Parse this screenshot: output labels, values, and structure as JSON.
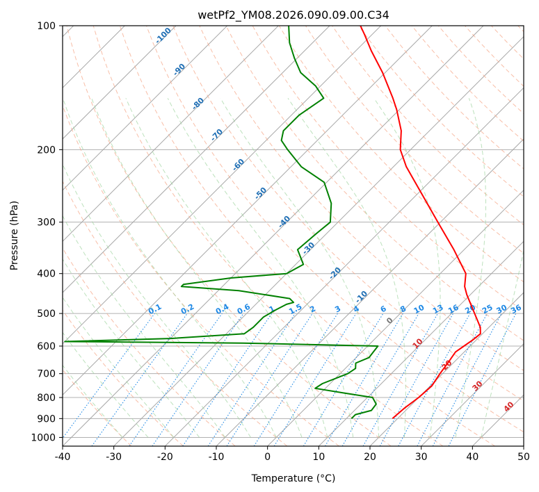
{
  "chart_data": {
    "type": "skew-t",
    "title": "wetPf2_YM08.2026.090.09.00.C34",
    "xlabel": "Temperature (°C)",
    "ylabel": "Pressure (hPa)",
    "xlim": [
      -40,
      50
    ],
    "ylim": [
      1050,
      100
    ],
    "x_ticks": [
      "-40",
      "-30",
      "-20",
      "-10",
      "0",
      "10",
      "20",
      "30",
      "40",
      "50"
    ],
    "y_ticks": [
      "100",
      "200",
      "300",
      "400",
      "500",
      "600",
      "700",
      "800",
      "900",
      "1000"
    ],
    "series": [
      {
        "name": "temperature",
        "color": "#ff0000",
        "points": [
          [
            900,
            19.0
          ],
          [
            850,
            19.3
          ],
          [
            800,
            20.0
          ],
          [
            750,
            20.3
          ],
          [
            700,
            19.5
          ],
          [
            650,
            18.8
          ],
          [
            620,
            18.3
          ],
          [
            600,
            18.8
          ],
          [
            580,
            19.3
          ],
          [
            560,
            19.6
          ],
          [
            540,
            18.3
          ],
          [
            500,
            14.5
          ],
          [
            450,
            9.3
          ],
          [
            430,
            7.3
          ],
          [
            400,
            5.0
          ],
          [
            350,
            -2.0
          ],
          [
            300,
            -10.5
          ],
          [
            250,
            -20.5
          ],
          [
            220,
            -27.5
          ],
          [
            200,
            -32.0
          ],
          [
            180,
            -35.5
          ],
          [
            160,
            -40.5
          ],
          [
            150,
            -43.5
          ],
          [
            130,
            -50.5
          ],
          [
            115,
            -57.0
          ],
          [
            105,
            -61.5
          ],
          [
            100,
            -64.0
          ]
        ]
      },
      {
        "name": "dewpoint",
        "color": "#008000",
        "points": [
          [
            900,
            11.0
          ],
          [
            880,
            11.0
          ],
          [
            860,
            13.3
          ],
          [
            830,
            13.0
          ],
          [
            800,
            11.0
          ],
          [
            780,
            4.5
          ],
          [
            760,
            -2.0
          ],
          [
            740,
            -1.5
          ],
          [
            700,
            1.5
          ],
          [
            680,
            2.0
          ],
          [
            660,
            1.0
          ],
          [
            640,
            2.5
          ],
          [
            600,
            2.0
          ],
          [
            590,
            -25.0
          ],
          [
            585,
            -60.0
          ],
          [
            575,
            -40.0
          ],
          [
            560,
            -26.5
          ],
          [
            540,
            -26.0
          ],
          [
            510,
            -26.0
          ],
          [
            490,
            -25.0
          ],
          [
            475,
            -24.0
          ],
          [
            470,
            -23.0
          ],
          [
            460,
            -24.5
          ],
          [
            440,
            -36.0
          ],
          [
            430,
            -48.0
          ],
          [
            425,
            -48.0
          ],
          [
            410,
            -40.0
          ],
          [
            400,
            -30.0
          ],
          [
            380,
            -28.5
          ],
          [
            350,
            -32.5
          ],
          [
            320,
            -32.0
          ],
          [
            300,
            -31.5
          ],
          [
            270,
            -35.0
          ],
          [
            240,
            -40.5
          ],
          [
            220,
            -48.0
          ],
          [
            200,
            -54.0
          ],
          [
            190,
            -57.0
          ],
          [
            180,
            -58.5
          ],
          [
            165,
            -58.5
          ],
          [
            150,
            -57.0
          ],
          [
            140,
            -61.0
          ],
          [
            130,
            -66.5
          ],
          [
            120,
            -70.5
          ],
          [
            110,
            -74.5
          ],
          [
            100,
            -78.0
          ]
        ]
      }
    ],
    "dry_adiabat_labels": [
      "-100",
      "-90",
      "-80",
      "-70",
      "-60",
      "-50",
      "-40",
      "-30",
      "-20",
      "-10",
      "0",
      "10",
      "20",
      "30",
      "40"
    ],
    "mixing_ratio_labels": [
      "0.1",
      "0.2",
      "0.4",
      "0.6",
      "1",
      "1.5",
      "2",
      "3",
      "4",
      "6",
      "8",
      "10",
      "13",
      "16",
      "20",
      "25",
      "30",
      "36"
    ]
  }
}
